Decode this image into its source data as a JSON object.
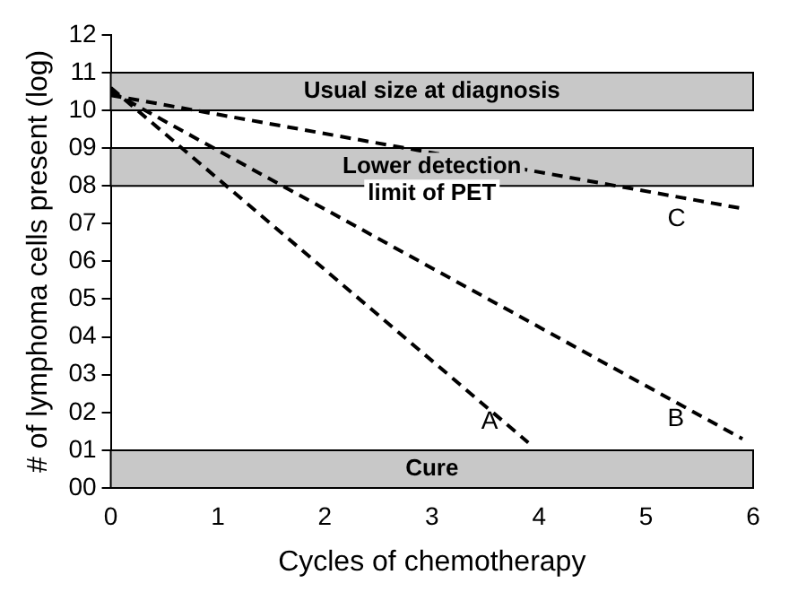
{
  "chart_data": {
    "type": "line",
    "xlabel": "Cycles of chemotherapy",
    "ylabel": "# of lymphoma cells present (log)",
    "xlim": [
      0,
      6
    ],
    "xticks": [
      0,
      1,
      2,
      3,
      4,
      5,
      6
    ],
    "ylim": [
      0,
      12
    ],
    "yticks": [
      {
        "value": 0,
        "label": "00"
      },
      {
        "value": 1,
        "label": "01"
      },
      {
        "value": 2,
        "label": "02"
      },
      {
        "value": 3,
        "label": "03"
      },
      {
        "value": 4,
        "label": "04"
      },
      {
        "value": 5,
        "label": "05"
      },
      {
        "value": 6,
        "label": "06"
      },
      {
        "value": 7,
        "label": "07"
      },
      {
        "value": 8,
        "label": "08"
      },
      {
        "value": 9,
        "label": "09"
      },
      {
        "value": 10,
        "label": "10"
      },
      {
        "value": 11,
        "label": "11"
      },
      {
        "value": 12,
        "label": "12"
      }
    ],
    "series": [
      {
        "name": "A",
        "color": "#000000",
        "x": [
          0,
          3.9
        ],
        "values": [
          10.6,
          1.2
        ]
      },
      {
        "name": "B",
        "color": "#000000",
        "x": [
          0,
          5.9
        ],
        "values": [
          10.5,
          1.3
        ]
      },
      {
        "name": "C",
        "color": "#000000",
        "x": [
          0,
          5.9
        ],
        "values": [
          10.4,
          7.4
        ]
      }
    ],
    "bands": [
      {
        "axis": "y",
        "from": 10,
        "to": 11,
        "label": "Usual size at diagnosis",
        "color": "#c8c8c8"
      },
      {
        "axis": "y",
        "from": 8,
        "to": 9,
        "label": "Lower detection limit of PET",
        "color": "#c8c8c8"
      },
      {
        "axis": "y",
        "from": 0,
        "to": 1,
        "label": "Cure",
        "color": "#c8c8c8"
      }
    ],
    "line_style": "dashed",
    "marker": "none",
    "grid": false,
    "legend": false
  }
}
